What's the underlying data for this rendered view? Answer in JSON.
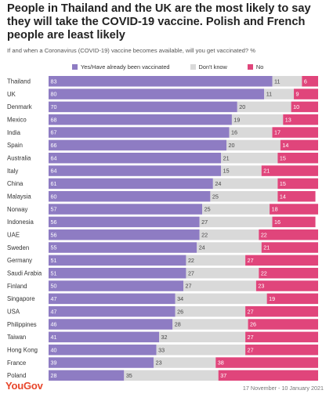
{
  "title": "People in Thailand and the UK are the most likely to say they will take the COVID-19 vaccine. Polish and French people are least likely",
  "subtitle": "If and when a Coronavirus (COVID-19) vaccine becomes available, will you get vaccinated? %",
  "footer": {
    "brand": "YouGov",
    "date": "17 November - 10 January 2021"
  },
  "colors": {
    "yes": "#8e7cc3",
    "dont_know": "#d9d9d9",
    "no": "#e0457b"
  },
  "chart_data": {
    "type": "bar",
    "orientation": "horizontal",
    "stacked": true,
    "categories": [
      "Thailand",
      "UK",
      "Denmark",
      "Mexico",
      "India",
      "Spain",
      "Australia",
      "Italy",
      "China",
      "Malaysia",
      "Norway",
      "Indonesia",
      "UAE",
      "Sweden",
      "Germany",
      "Saudi Arabia",
      "Finland",
      "Singapore",
      "USA",
      "Philippines",
      "Taiwan",
      "Hong Kong",
      "France",
      "Poland"
    ],
    "series": [
      {
        "name": "Yes/Have already been vaccinated",
        "color": "#8e7cc3",
        "values": [
          83,
          80,
          70,
          68,
          67,
          66,
          64,
          64,
          61,
          60,
          57,
          56,
          56,
          55,
          51,
          51,
          50,
          47,
          47,
          46,
          41,
          40,
          39,
          28
        ]
      },
      {
        "name": "Don't know",
        "color": "#d9d9d9",
        "values": [
          11,
          11,
          20,
          19,
          16,
          20,
          21,
          15,
          24,
          25,
          25,
          27,
          22,
          24,
          22,
          27,
          27,
          34,
          26,
          28,
          32,
          33,
          23,
          35
        ]
      },
      {
        "name": "No",
        "color": "#e0457b",
        "values": [
          6,
          9,
          10,
          13,
          17,
          14,
          15,
          21,
          15,
          14,
          18,
          16,
          22,
          21,
          27,
          22,
          23,
          19,
          27,
          26,
          27,
          27,
          38,
          37
        ]
      }
    ],
    "xlim": [
      0,
      100
    ],
    "legend_position": "top",
    "grid": false
  }
}
